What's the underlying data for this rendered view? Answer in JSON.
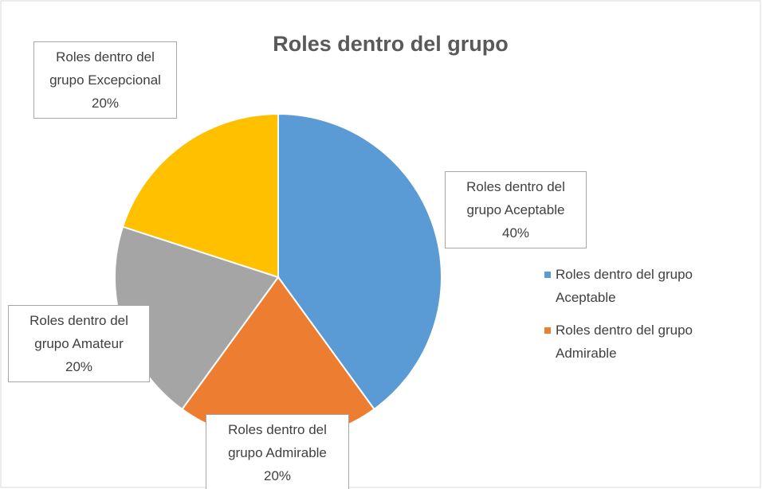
{
  "chart_data": {
    "type": "pie",
    "title": "Roles dentro del grupo",
    "categories": [
      "Roles dentro del grupo Aceptable",
      "Roles dentro del grupo Admirable",
      "Roles dentro del grupo Amateur",
      "Roles dentro del grupo Excepcional"
    ],
    "values": [
      40,
      20,
      20,
      20
    ],
    "value_labels": [
      "40%",
      "20%",
      "20%",
      "20%"
    ],
    "colors": [
      "#5b9bd5",
      "#ed7d31",
      "#a5a5a5",
      "#ffc000"
    ],
    "legend": "right"
  }
}
